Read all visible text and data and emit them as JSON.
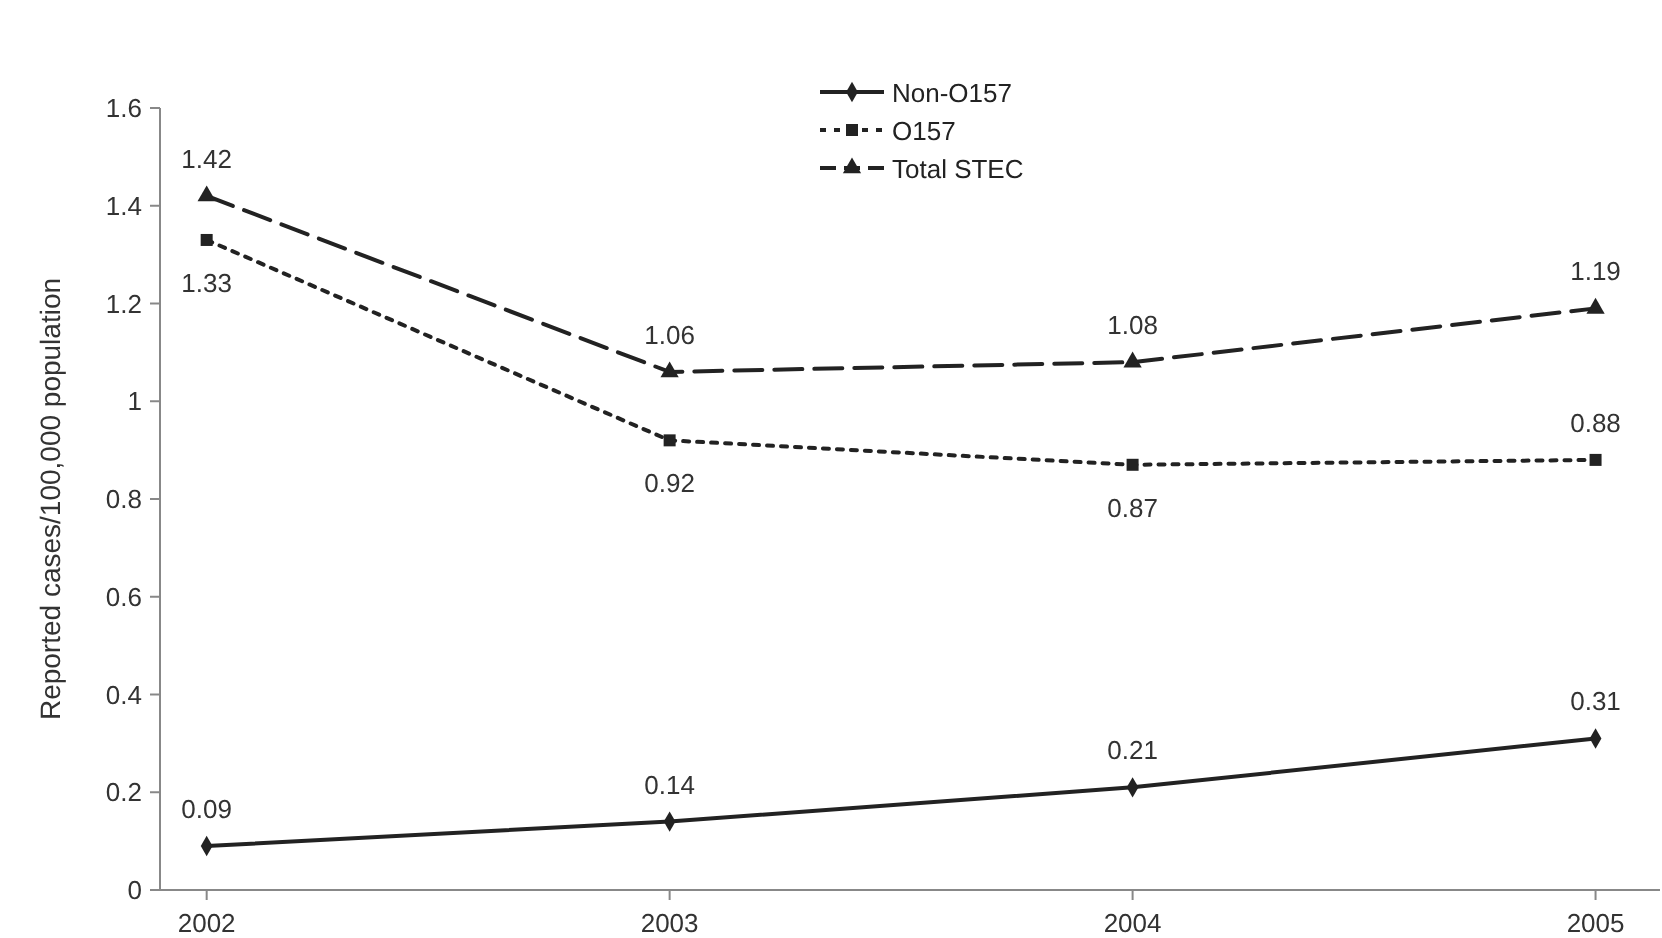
{
  "chart_data": {
    "type": "line",
    "ylabel": "Reported cases/100,000 population",
    "categories": [
      "2002",
      "2003",
      "2004",
      "2005"
    ],
    "series": [
      {
        "name": "Non-O157",
        "color": "#222222",
        "values": [
          0.09,
          0.14,
          0.21,
          0.31
        ],
        "marker": "diamond",
        "line_style": "solid"
      },
      {
        "name": "O157",
        "color": "#222222",
        "values": [
          1.33,
          0.92,
          0.87,
          0.88
        ],
        "marker": "square",
        "line_style": "dotted"
      },
      {
        "name": "Total STEC",
        "color": "#222222",
        "values": [
          1.42,
          1.06,
          1.08,
          1.19
        ],
        "marker": "triangle",
        "line_style": "dashed"
      }
    ],
    "ylim": [
      0,
      1.6
    ],
    "yticks": [
      0,
      0.2,
      0.4,
      0.6,
      0.8,
      1,
      1.2,
      1.4,
      1.6
    ],
    "grid": false,
    "legend": "top",
    "data_labels": true
  }
}
